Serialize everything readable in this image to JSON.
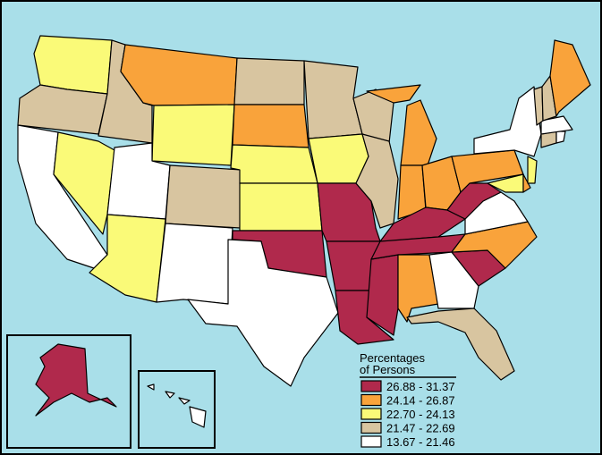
{
  "legend": {
    "title_lines": [
      "Percentages",
      "of Persons"
    ],
    "items": [
      {
        "label": "26.88 - 31.37",
        "color": "#b0294c"
      },
      {
        "label": "24.14 - 26.87",
        "color": "#f9a33b"
      },
      {
        "label": "22.70 - 24.13",
        "color": "#fafa78"
      },
      {
        "label": "21.47 - 22.69",
        "color": "#d8c5a0"
      },
      {
        "label": "13.67 - 21.46",
        "color": "#ffffff"
      }
    ]
  }
}
